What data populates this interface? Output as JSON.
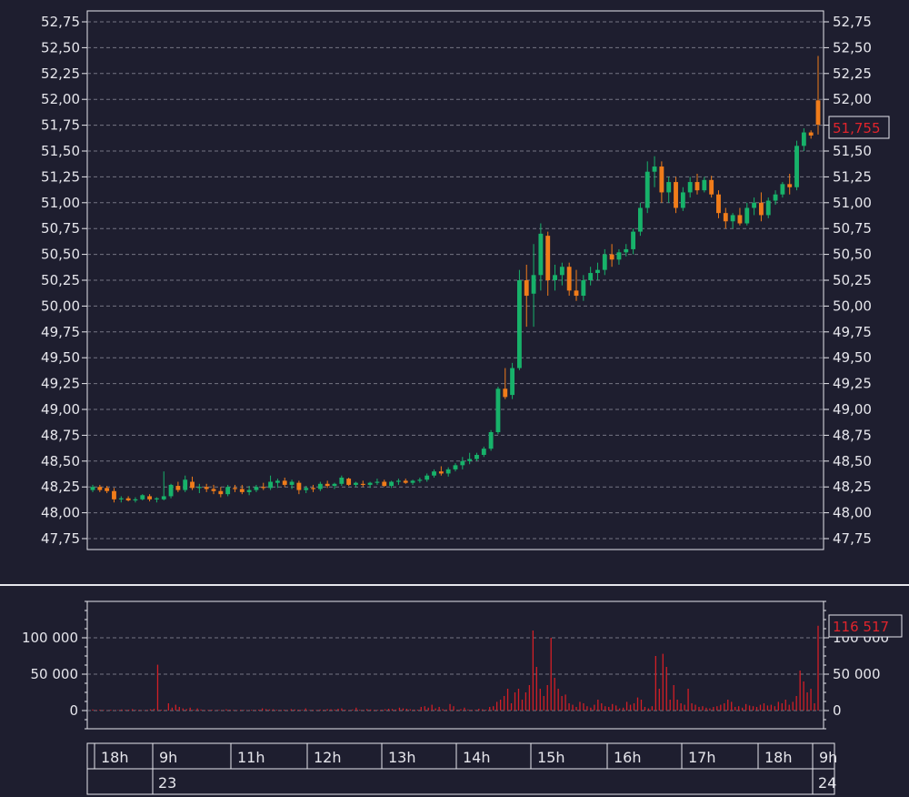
{
  "chart_data": [
    {
      "type": "candlestick",
      "ylim": [
        47.75,
        52.75
      ],
      "y_ticks": [
        "52,75",
        "52,50",
        "52,25",
        "52,00",
        "51,75",
        "51,50",
        "51,25",
        "51,00",
        "50,75",
        "50,50",
        "50,25",
        "50,00",
        "49,75",
        "49,50",
        "49,25",
        "49,00",
        "48,75",
        "48,50",
        "48,25",
        "48,00",
        "47,75"
      ],
      "grid": true,
      "last_price_label": "51,755",
      "colors": {
        "up": "#17b26a",
        "down": "#f07c1a"
      },
      "candles": [
        [
          48.22,
          48.27,
          48.2,
          48.25
        ],
        [
          48.25,
          48.27,
          48.2,
          48.22
        ],
        [
          48.24,
          48.26,
          48.19,
          48.21
        ],
        [
          48.21,
          48.24,
          48.1,
          48.13
        ],
        [
          48.13,
          48.16,
          48.1,
          48.14
        ],
        [
          48.14,
          48.16,
          48.11,
          48.12
        ],
        [
          48.12,
          48.15,
          48.1,
          48.13
        ],
        [
          48.13,
          48.18,
          48.12,
          48.17
        ],
        [
          48.16,
          48.18,
          48.11,
          48.13
        ],
        [
          48.13,
          48.15,
          48.1,
          48.14
        ],
        [
          48.13,
          48.4,
          48.12,
          48.16
        ],
        [
          48.16,
          48.28,
          48.14,
          48.27
        ],
        [
          48.26,
          48.3,
          48.2,
          48.22
        ],
        [
          48.22,
          48.36,
          48.2,
          48.32
        ],
        [
          48.3,
          48.35,
          48.22,
          48.24
        ],
        [
          48.24,
          48.28,
          48.19,
          48.25
        ],
        [
          48.25,
          48.28,
          48.2,
          48.23
        ],
        [
          48.23,
          48.27,
          48.18,
          48.21
        ],
        [
          48.21,
          48.25,
          48.15,
          48.18
        ],
        [
          48.18,
          48.27,
          48.16,
          48.25
        ],
        [
          48.24,
          48.27,
          48.2,
          48.23
        ],
        [
          48.23,
          48.27,
          48.18,
          48.2
        ],
        [
          48.2,
          48.26,
          48.17,
          48.22
        ],
        [
          48.22,
          48.27,
          48.2,
          48.25
        ],
        [
          48.25,
          48.29,
          48.22,
          48.24
        ],
        [
          48.24,
          48.36,
          48.22,
          48.3
        ],
        [
          48.29,
          48.33,
          48.24,
          48.31
        ],
        [
          48.31,
          48.34,
          48.25,
          48.27
        ],
        [
          48.27,
          48.32,
          48.23,
          48.3
        ],
        [
          48.29,
          48.31,
          48.18,
          48.22
        ],
        [
          48.22,
          48.26,
          48.19,
          48.24
        ],
        [
          48.24,
          48.27,
          48.2,
          48.23
        ],
        [
          48.23,
          48.3,
          48.21,
          48.28
        ],
        [
          48.28,
          48.31,
          48.24,
          48.26
        ],
        [
          48.26,
          48.29,
          48.23,
          48.28
        ],
        [
          48.28,
          48.36,
          48.26,
          48.34
        ],
        [
          48.33,
          48.34,
          48.26,
          48.27
        ],
        [
          48.27,
          48.3,
          48.25,
          48.29
        ],
        [
          48.28,
          48.31,
          48.25,
          48.27
        ],
        [
          48.27,
          48.3,
          48.24,
          48.29
        ],
        [
          48.29,
          48.33,
          48.27,
          48.3
        ],
        [
          48.3,
          48.32,
          48.25,
          48.26
        ],
        [
          48.26,
          48.31,
          48.24,
          48.3
        ],
        [
          48.3,
          48.33,
          48.27,
          48.31
        ],
        [
          48.31,
          48.33,
          48.28,
          48.29
        ],
        [
          48.29,
          48.32,
          48.27,
          48.31
        ],
        [
          48.31,
          48.34,
          48.29,
          48.32
        ],
        [
          48.32,
          48.38,
          48.3,
          48.36
        ],
        [
          48.36,
          48.42,
          48.34,
          48.4
        ],
        [
          48.4,
          48.45,
          48.36,
          48.38
        ],
        [
          48.38,
          48.44,
          48.35,
          48.42
        ],
        [
          48.42,
          48.48,
          48.4,
          48.46
        ],
        [
          48.46,
          48.54,
          48.42,
          48.5
        ],
        [
          48.5,
          48.58,
          48.47,
          48.52
        ],
        [
          48.52,
          48.58,
          48.5,
          48.56
        ],
        [
          48.56,
          48.64,
          48.54,
          48.62
        ],
        [
          48.62,
          48.8,
          48.6,
          48.78
        ],
        [
          48.78,
          49.22,
          48.76,
          49.2
        ],
        [
          49.2,
          49.4,
          49.1,
          49.12
        ],
        [
          49.14,
          49.45,
          49.1,
          49.4
        ],
        [
          49.4,
          50.35,
          49.38,
          50.25
        ],
        [
          50.25,
          50.4,
          49.8,
          50.1
        ],
        [
          50.12,
          50.6,
          49.8,
          50.3
        ],
        [
          50.3,
          50.8,
          50.15,
          50.7
        ],
        [
          50.68,
          50.72,
          50.1,
          50.25
        ],
        [
          50.25,
          50.4,
          50.15,
          50.3
        ],
        [
          50.3,
          50.42,
          50.2,
          50.38
        ],
        [
          50.38,
          50.42,
          50.1,
          50.15
        ],
        [
          50.15,
          50.35,
          50.05,
          50.1
        ],
        [
          50.1,
          50.3,
          50.05,
          50.25
        ],
        [
          50.25,
          50.38,
          50.2,
          50.32
        ],
        [
          50.32,
          50.42,
          50.25,
          50.35
        ],
        [
          50.35,
          50.55,
          50.3,
          50.5
        ],
        [
          50.5,
          50.6,
          50.38,
          50.45
        ],
        [
          50.45,
          50.55,
          50.4,
          50.52
        ],
        [
          50.52,
          50.6,
          50.48,
          50.55
        ],
        [
          50.55,
          50.75,
          50.5,
          50.72
        ],
        [
          50.72,
          51.0,
          50.68,
          50.95
        ],
        [
          50.95,
          51.4,
          50.9,
          51.3
        ],
        [
          51.3,
          51.45,
          51.15,
          51.35
        ],
        [
          51.35,
          51.4,
          51.0,
          51.1
        ],
        [
          51.1,
          51.25,
          51.0,
          51.2
        ],
        [
          51.2,
          51.25,
          50.9,
          50.95
        ],
        [
          50.95,
          51.15,
          50.92,
          51.1
        ],
        [
          51.1,
          51.25,
          51.05,
          51.2
        ],
        [
          51.2,
          51.28,
          51.08,
          51.12
        ],
        [
          51.12,
          51.25,
          51.1,
          51.22
        ],
        [
          51.22,
          51.26,
          51.05,
          51.08
        ],
        [
          51.08,
          51.12,
          50.85,
          50.9
        ],
        [
          50.9,
          50.95,
          50.75,
          50.82
        ],
        [
          50.82,
          50.9,
          50.75,
          50.88
        ],
        [
          50.88,
          50.95,
          50.78,
          50.8
        ],
        [
          50.8,
          51.0,
          50.78,
          50.95
        ],
        [
          50.95,
          51.05,
          50.88,
          51.0
        ],
        [
          51.0,
          51.1,
          50.82,
          50.88
        ],
        [
          50.88,
          51.05,
          50.85,
          51.02
        ],
        [
          51.02,
          51.12,
          50.98,
          51.08
        ],
        [
          51.08,
          51.2,
          51.05,
          51.18
        ],
        [
          51.18,
          51.28,
          51.08,
          51.15
        ],
        [
          51.15,
          51.6,
          51.12,
          51.55
        ],
        [
          51.55,
          51.72,
          51.5,
          51.68
        ],
        [
          51.68,
          51.7,
          51.62,
          51.65
        ],
        [
          51.99,
          52.42,
          51.66,
          51.755
        ]
      ]
    },
    {
      "type": "bar",
      "ylim": [
        -25000,
        150000
      ],
      "y_ticks": [
        "100 000",
        "50 000",
        "0"
      ],
      "grid": true,
      "last_value_label": "116 517",
      "color": "#d21f26",
      "values": [
        1500,
        800,
        1200,
        900,
        500,
        1100,
        600,
        800,
        1500,
        900,
        1200,
        2000,
        800,
        1000,
        600,
        900,
        1800,
        2500,
        63000,
        1200,
        900,
        10000,
        4000,
        8000,
        5000,
        3000,
        2000,
        4000,
        1200,
        3000,
        1500,
        800,
        1000,
        1200,
        600,
        900,
        800,
        1800,
        1200,
        900,
        700,
        1100,
        800,
        600,
        1000,
        900,
        1200,
        3000,
        2000,
        1500,
        1800,
        1100,
        900,
        1200,
        800,
        2000,
        1500,
        1200,
        1000,
        3000,
        800,
        1100,
        900,
        1500,
        1200,
        2000,
        1800,
        1400,
        2500,
        3000,
        1200,
        800,
        1500,
        4000,
        1200,
        900,
        2000,
        1500,
        1100,
        900,
        1200,
        1800,
        2500,
        2200,
        1500,
        4000,
        3000,
        2500,
        1800,
        1400,
        1200,
        5000,
        6000,
        4000,
        8000,
        3000,
        5000,
        2000,
        1500,
        9000,
        6000,
        1200,
        2000,
        4000,
        1500,
        1100,
        900,
        2500,
        1800,
        1200,
        5000,
        6000,
        12000,
        15000,
        20000,
        30000,
        10000,
        25000,
        30000,
        15000,
        25000,
        35000,
        110000,
        60000,
        30000,
        20000,
        35000,
        100000,
        45000,
        30000,
        20000,
        22000,
        10000,
        8000,
        5000,
        12000,
        10000,
        6000,
        4000,
        8000,
        15000,
        10000,
        6000,
        5000,
        9000,
        7000,
        3000,
        4000,
        12000,
        8000,
        10000,
        18000,
        15000,
        5000,
        3000,
        6000,
        75000,
        30000,
        78000,
        60000,
        15000,
        35000,
        15000,
        10000,
        8000,
        30000,
        10000,
        8000,
        5000,
        6000,
        4000,
        3000,
        5000,
        6000,
        8000,
        10000,
        15000,
        12000,
        5000,
        6000,
        4000,
        9000,
        7000,
        6000,
        5000,
        8000,
        10000,
        7000,
        8000,
        6000,
        12000,
        10000,
        15000,
        8000,
        12000,
        20000,
        55000,
        40000,
        25000,
        30000,
        10000,
        116517
      ]
    }
  ],
  "time_axis": {
    "hours": [
      "18h",
      "9h",
      "11h",
      "12h",
      "13h",
      "14h",
      "15h",
      "16h",
      "17h",
      "18h",
      "9h"
    ],
    "days": [
      "23",
      "24"
    ]
  },
  "meta": {
    "volume_last_label": "116 517"
  }
}
